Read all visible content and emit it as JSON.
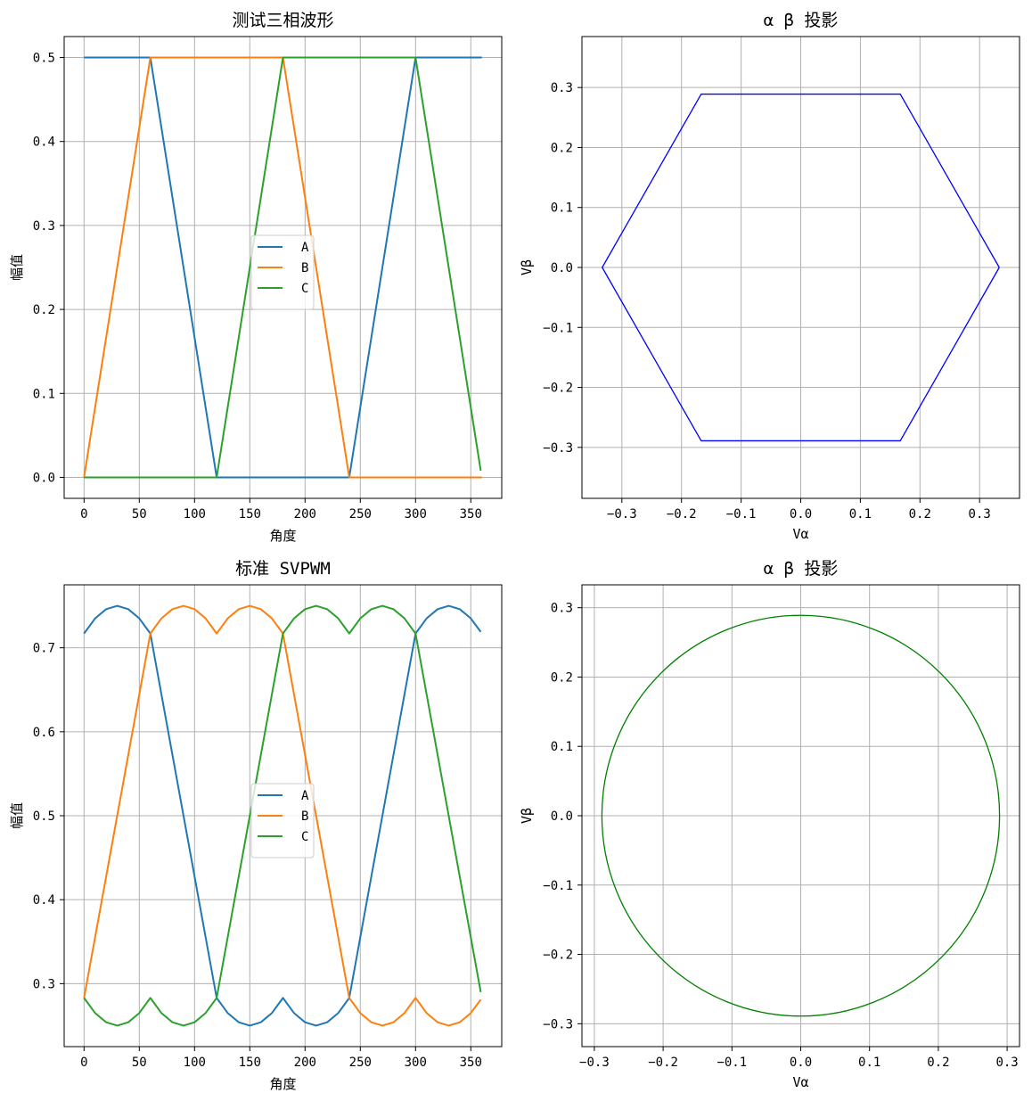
{
  "chart_data": [
    {
      "id": "p1",
      "type": "line",
      "title": "测试三相波形",
      "xlabel": "角度",
      "ylabel": "幅值",
      "xlim": [
        -18,
        378
      ],
      "ylim": [
        -0.025,
        0.525
      ],
      "xticks": [
        0,
        50,
        100,
        150,
        200,
        250,
        300,
        350
      ],
      "yticks": [
        0.0,
        0.1,
        0.2,
        0.3,
        0.4,
        0.5
      ],
      "tick_decimals": 1,
      "grid": true,
      "legend": "center",
      "series": [
        {
          "name": "A",
          "color": "#1f77b4",
          "x": [
            0,
            60,
            120,
            240,
            300,
            360
          ],
          "y": [
            0.5,
            0.5,
            0.0,
            0.0,
            0.5,
            0.5
          ]
        },
        {
          "name": "B",
          "color": "#ff7f0e",
          "x": [
            0,
            60,
            180,
            240,
            360
          ],
          "y": [
            0.0,
            0.5,
            0.5,
            0.0,
            0.0
          ]
        },
        {
          "name": "C",
          "color": "#2ca02c",
          "x": [
            0,
            120,
            180,
            300,
            359
          ],
          "y": [
            0.0,
            0.0,
            0.5,
            0.5,
            0.008
          ]
        }
      ]
    },
    {
      "id": "p2",
      "type": "line",
      "title": "α β 投影",
      "xlabel": "Vα",
      "ylabel": "Vβ",
      "xlim": [
        -0.367,
        0.367
      ],
      "ylim": [
        -0.385,
        0.385
      ],
      "xticks": [
        -0.3,
        -0.2,
        -0.1,
        0.0,
        0.1,
        0.2,
        0.3
      ],
      "yticks": [
        -0.3,
        -0.2,
        -0.1,
        0.0,
        0.1,
        0.2,
        0.3
      ],
      "tick_decimals": 1,
      "grid": true,
      "series": [
        {
          "color": "#0000ff",
          "x": [
            0.333,
            0.167,
            -0.167,
            -0.333,
            -0.167,
            0.167,
            0.333
          ],
          "y": [
            0.0,
            0.289,
            0.289,
            0.0,
            -0.289,
            -0.289,
            0.0
          ]
        }
      ]
    },
    {
      "id": "p3",
      "type": "line",
      "title": "标准 SVPWM",
      "xlabel": "角度",
      "ylabel": "幅值",
      "xlim": [
        -18,
        378
      ],
      "ylim": [
        0.225,
        0.775
      ],
      "xticks": [
        0,
        50,
        100,
        150,
        200,
        250,
        300,
        350
      ],
      "yticks": [
        0.3,
        0.4,
        0.5,
        0.6,
        0.7
      ],
      "tick_decimals": 1,
      "grid": true,
      "legend": "center",
      "series": [
        {
          "name": "A",
          "color": "#1f77b4",
          "x": [
            0,
            10,
            20,
            30,
            40,
            50,
            60,
            120,
            130,
            140,
            150,
            160,
            170,
            180,
            190,
            200,
            210,
            220,
            230,
            240,
            300,
            310,
            320,
            330,
            340,
            350,
            359
          ],
          "y": [
            0.717,
            0.735,
            0.746,
            0.75,
            0.746,
            0.735,
            0.717,
            0.283,
            0.265,
            0.254,
            0.25,
            0.254,
            0.265,
            0.283,
            0.265,
            0.254,
            0.25,
            0.254,
            0.265,
            0.283,
            0.717,
            0.735,
            0.746,
            0.75,
            0.746,
            0.735,
            0.719
          ]
        },
        {
          "name": "B",
          "color": "#ff7f0e",
          "x": [
            0,
            60,
            70,
            80,
            90,
            100,
            110,
            120,
            130,
            140,
            150,
            160,
            170,
            180,
            240,
            250,
            260,
            270,
            280,
            290,
            300,
            310,
            320,
            330,
            340,
            350,
            359
          ],
          "y": [
            0.283,
            0.717,
            0.735,
            0.746,
            0.75,
            0.746,
            0.735,
            0.717,
            0.735,
            0.746,
            0.75,
            0.746,
            0.735,
            0.717,
            0.283,
            0.265,
            0.254,
            0.25,
            0.254,
            0.265,
            0.283,
            0.265,
            0.254,
            0.25,
            0.254,
            0.265,
            0.281
          ]
        },
        {
          "name": "C",
          "color": "#2ca02c",
          "x": [
            0,
            10,
            20,
            30,
            40,
            50,
            60,
            70,
            80,
            90,
            100,
            110,
            120,
            180,
            190,
            200,
            210,
            220,
            230,
            240,
            250,
            260,
            270,
            280,
            290,
            300,
            359
          ],
          "y": [
            0.283,
            0.265,
            0.254,
            0.25,
            0.254,
            0.265,
            0.283,
            0.265,
            0.254,
            0.25,
            0.254,
            0.265,
            0.283,
            0.717,
            0.735,
            0.746,
            0.75,
            0.746,
            0.735,
            0.717,
            0.735,
            0.746,
            0.75,
            0.746,
            0.735,
            0.717,
            0.29
          ]
        }
      ]
    },
    {
      "id": "p4",
      "type": "line",
      "title": "α β 投影",
      "xlabel": "Vα",
      "ylabel": "Vβ",
      "xlim": [
        -0.318,
        0.318
      ],
      "ylim": [
        -0.333,
        0.333
      ],
      "xticks": [
        -0.3,
        -0.2,
        -0.1,
        0.0,
        0.1,
        0.2,
        0.3
      ],
      "yticks": [
        -0.3,
        -0.2,
        -0.1,
        0.0,
        0.1,
        0.2,
        0.3
      ],
      "tick_decimals": 1,
      "grid": true,
      "series": [
        {
          "color": "#008000",
          "shape": "circle",
          "radius": 0.289
        }
      ]
    }
  ]
}
